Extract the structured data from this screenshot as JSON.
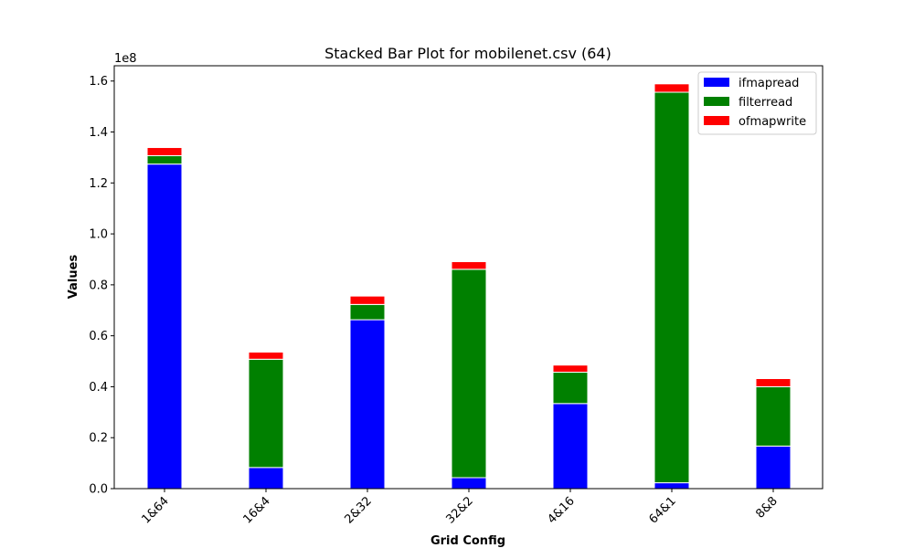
{
  "chart_data": {
    "type": "bar",
    "stacked": true,
    "title": "Stacked Bar Plot for mobilenet.csv (64)",
    "xlabel": "Grid Config",
    "ylabel": "Values",
    "y_scale_note": "1e8",
    "categories": [
      "1&64",
      "16&4",
      "2&32",
      "32&2",
      "4&16",
      "64&1",
      "8&8"
    ],
    "series": [
      {
        "name": "ifmapread",
        "color": "#0000ff",
        "values": [
          127400000,
          8300000,
          66300000,
          4300000,
          33400000,
          2300000,
          16700000
        ]
      },
      {
        "name": "filterread",
        "color": "#008000",
        "values": [
          3300000,
          42500000,
          6000000,
          81800000,
          12300000,
          153300000,
          23300000
        ]
      },
      {
        "name": "ofmapwrite",
        "color": "#ff0000",
        "values": [
          3200000,
          2800000,
          3300000,
          3000000,
          2800000,
          3300000,
          3200000
        ]
      }
    ],
    "ylim": [
      0,
      166000000
    ],
    "yticks": [
      0,
      20000000,
      40000000,
      60000000,
      80000000,
      100000000,
      120000000,
      140000000,
      160000000
    ],
    "ytick_labels": [
      "0.0",
      "0.2",
      "0.4",
      "0.6",
      "0.8",
      "1.0",
      "1.2",
      "1.4",
      "1.6"
    ],
    "grid": false,
    "legend_position": "top-right"
  }
}
